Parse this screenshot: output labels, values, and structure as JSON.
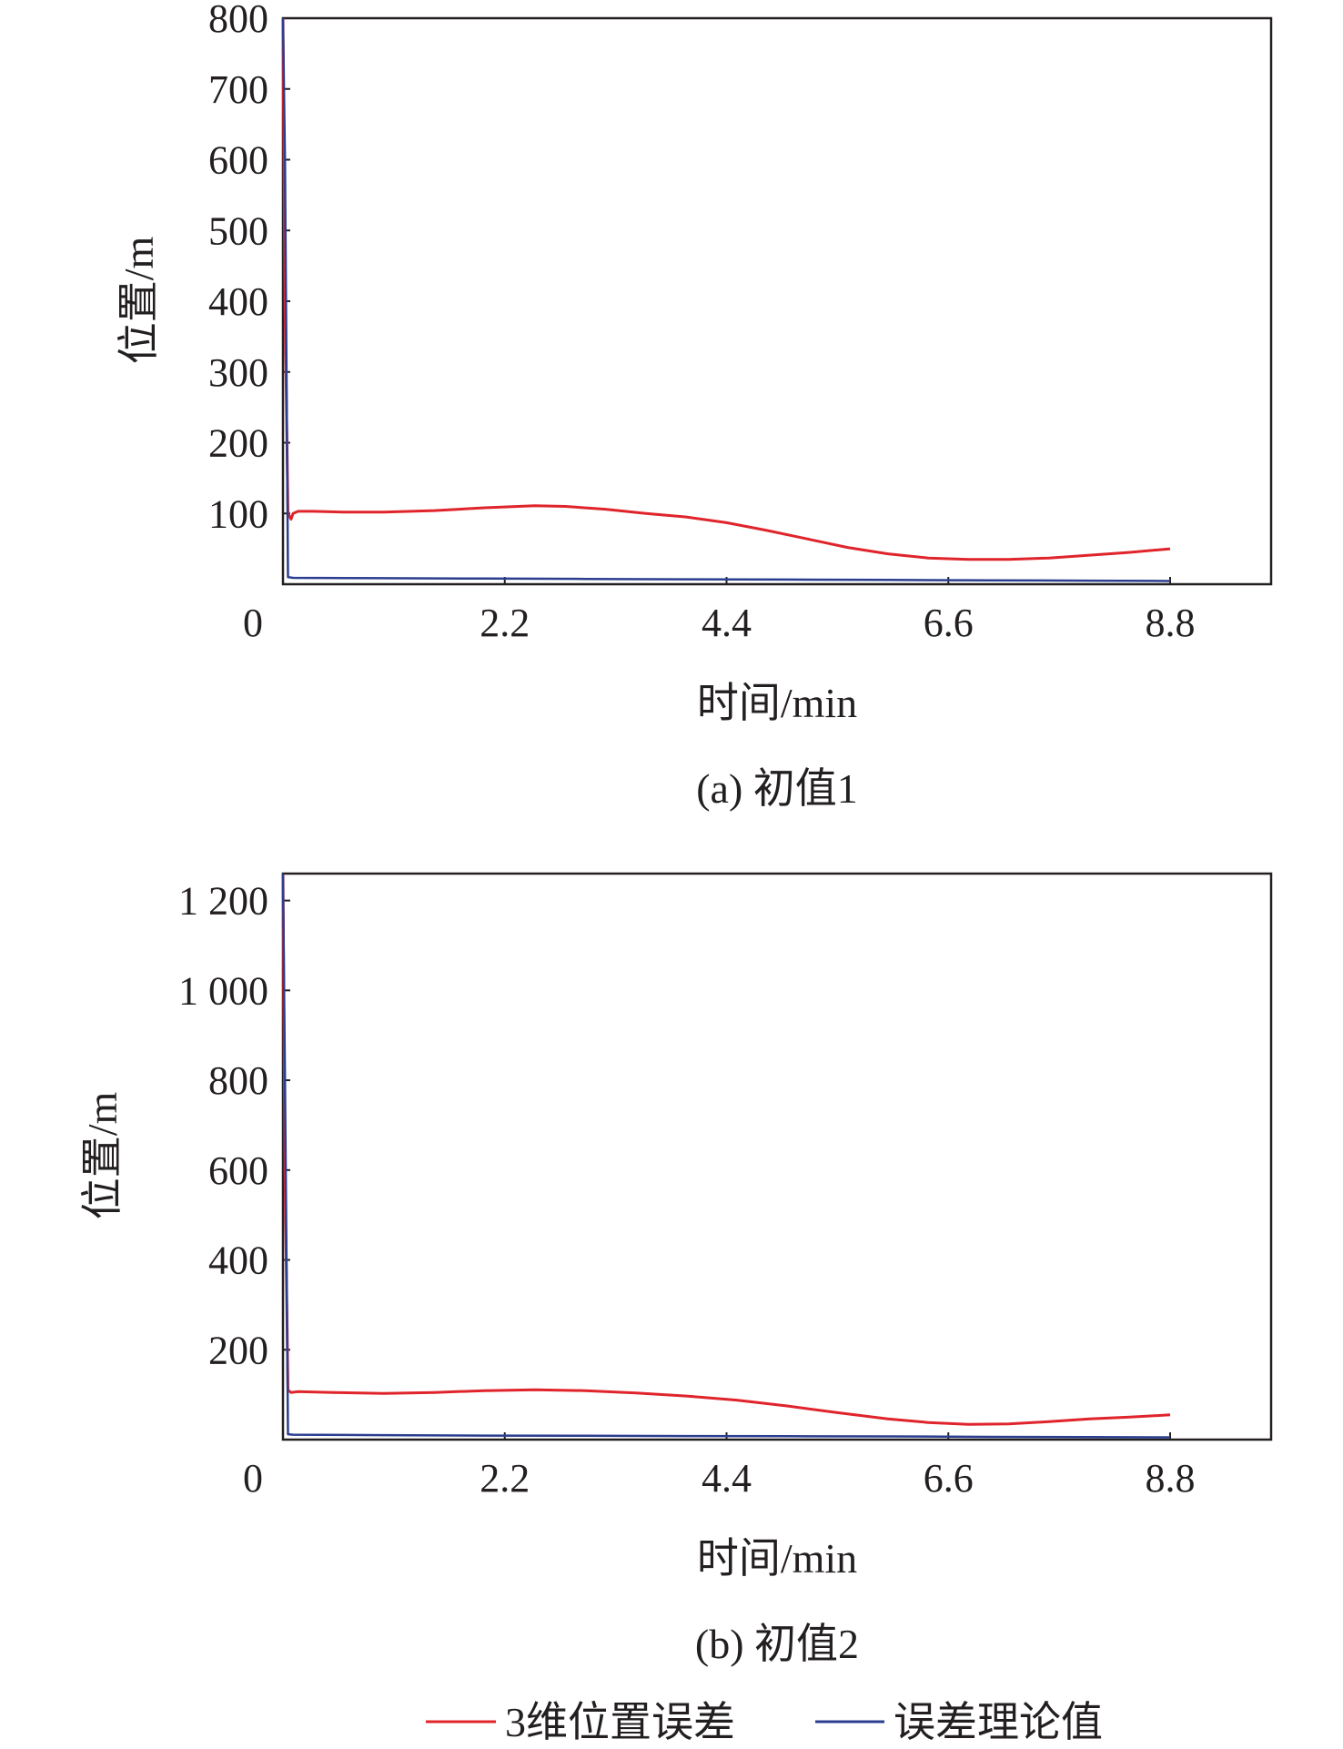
{
  "chart_data": [
    {
      "type": "line",
      "caption": "(a) 初值1",
      "xlabel": "时间/min",
      "ylabel": "位置/m",
      "xlim": [
        0,
        8.8
      ],
      "ylim": [
        0,
        800
      ],
      "x_ticks": [
        2.2,
        4.4,
        6.6,
        8.8
      ],
      "x_tick_labels": [
        "2.2",
        "4.4",
        "6.6",
        "8.8"
      ],
      "y_ticks": [
        100,
        200,
        300,
        400,
        500,
        600,
        700,
        800
      ],
      "y_tick_labels": [
        "100",
        "200",
        "300",
        "400",
        "500",
        "600",
        "700",
        "800"
      ],
      "origin_label": "0",
      "grid": false,
      "series": [
        {
          "name": "3维位置误差",
          "color": "#e0242b",
          "x": [
            0.0,
            0.02,
            0.05,
            0.08,
            0.1,
            0.15,
            0.3,
            0.6,
            1.0,
            1.5,
            2.0,
            2.5,
            2.8,
            3.2,
            3.6,
            4.0,
            4.4,
            4.8,
            5.2,
            5.6,
            6.0,
            6.4,
            6.8,
            7.2,
            7.6,
            8.0,
            8.4,
            8.8
          ],
          "y": [
            800,
            400,
            100,
            92,
            100,
            103,
            103,
            102,
            102,
            104,
            108,
            111,
            110,
            106,
            100,
            95,
            87,
            76,
            64,
            52,
            43,
            37,
            35,
            35,
            37,
            41,
            45,
            50
          ]
        },
        {
          "name": "误差理论值",
          "color": "#2b3e8f",
          "x": [
            0.0,
            0.02,
            0.05,
            0.1,
            1.0,
            2.0,
            3.0,
            4.0,
            5.0,
            6.0,
            7.0,
            8.0,
            8.8
          ],
          "y": [
            800,
            600,
            10,
            9,
            8.5,
            8,
            7.5,
            7,
            6.5,
            6,
            5.5,
            5,
            4.5
          ]
        }
      ]
    },
    {
      "type": "line",
      "caption": "(b) 初值2",
      "xlabel": "时间/min",
      "ylabel": "位置/m",
      "xlim": [
        0,
        8.8
      ],
      "ylim": [
        0,
        1260
      ],
      "x_ticks": [
        2.2,
        4.4,
        6.6,
        8.8
      ],
      "x_tick_labels": [
        "2.2",
        "4.4",
        "6.6",
        "8.8"
      ],
      "y_ticks": [
        200,
        400,
        600,
        800,
        1000,
        1200
      ],
      "y_tick_labels": [
        "200",
        "400",
        "600",
        "800",
        "1 000",
        "1 200"
      ],
      "origin_label": "0",
      "grid": false,
      "series": [
        {
          "name": "3维位置误差",
          "color": "#e0242b",
          "x": [
            0.0,
            0.02,
            0.05,
            0.08,
            0.15,
            0.5,
            1.0,
            1.5,
            2.0,
            2.5,
            3.0,
            3.5,
            4.0,
            4.5,
            5.0,
            5.5,
            6.0,
            6.4,
            6.8,
            7.2,
            7.6,
            8.0,
            8.4,
            8.8
          ],
          "y": [
            1260,
            600,
            110,
            105,
            107,
            105,
            103,
            105,
            109,
            111,
            109,
            104,
            97,
            88,
            75,
            60,
            46,
            38,
            34,
            35,
            40,
            46,
            50,
            55
          ]
        },
        {
          "name": "误差理论值",
          "color": "#2b3e8f",
          "x": [
            0.0,
            0.02,
            0.05,
            0.1,
            1.0,
            2.0,
            3.0,
            4.0,
            5.0,
            6.0,
            7.0,
            8.0,
            8.8
          ],
          "y": [
            1260,
            800,
            12,
            11,
            10,
            9,
            8.5,
            8,
            7.5,
            7,
            6,
            5.5,
            5
          ]
        }
      ]
    }
  ],
  "legend": {
    "position": "bottom-center",
    "items": [
      {
        "label": "3维位置误差",
        "color": "#e0242b"
      },
      {
        "label": "误差理论值",
        "color": "#2b3e8f"
      }
    ]
  }
}
